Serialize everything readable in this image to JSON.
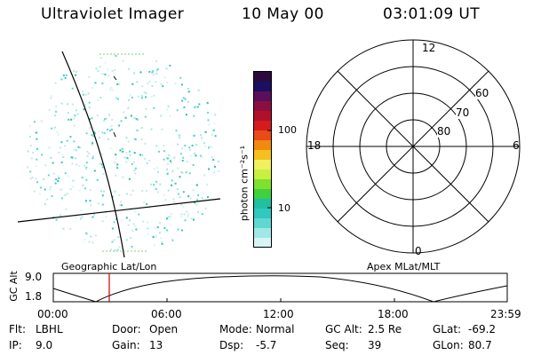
{
  "header": {
    "instrument": "Ultraviolet Imager",
    "date": "10 May 00",
    "time": "03:01:09 UT"
  },
  "colorbar": {
    "unit_label": "photon cm⁻²s⁻¹",
    "ticks": [
      "100",
      "10"
    ],
    "colors": [
      "#2b0a3d",
      "#1a0f60",
      "#5a0f5a",
      "#8a0f40",
      "#b0102a",
      "#d41c1c",
      "#e84a1a",
      "#f08a10",
      "#f5c020",
      "#f0f060",
      "#c8f040",
      "#80e030",
      "#40d040",
      "#20c0a0",
      "#30c8c0",
      "#60d8d0",
      "#a0e8e8",
      "#d8f4f4"
    ]
  },
  "left_panel": {
    "label": "Geographic Lat/Lon"
  },
  "polar_plot": {
    "label": "Apex MLat/MLT",
    "mlt_labels": {
      "top": "12",
      "left": "18",
      "right": "6",
      "bottom": "0"
    },
    "lat_labels": [
      "60",
      "70",
      "80"
    ]
  },
  "timeline": {
    "ylabel": "GC Alt",
    "yticks": [
      "9.0",
      "1.8"
    ],
    "xticks": [
      "00:00",
      "06:00",
      "12:00",
      "18:00",
      "23:59"
    ],
    "marker_color": "#cc0000"
  },
  "info": {
    "row1": [
      {
        "key": "Flt:",
        "value": "LBHL"
      },
      {
        "key": "Door:",
        "value": "Open"
      },
      {
        "key": "Mode:",
        "value": "Normal"
      },
      {
        "key": "GC Alt:",
        "value": "2.5 Re"
      },
      {
        "key": "GLat:",
        "value": "-69.2"
      }
    ],
    "row2": [
      {
        "key": "IP:",
        "value": "9.0"
      },
      {
        "key": "Gain:",
        "value": "13"
      },
      {
        "key": "Dsp:",
        "value": "-5.7"
      },
      {
        "key": "Seq:",
        "value": "39"
      },
      {
        "key": "GLon:",
        "value": "80.7"
      }
    ]
  }
}
